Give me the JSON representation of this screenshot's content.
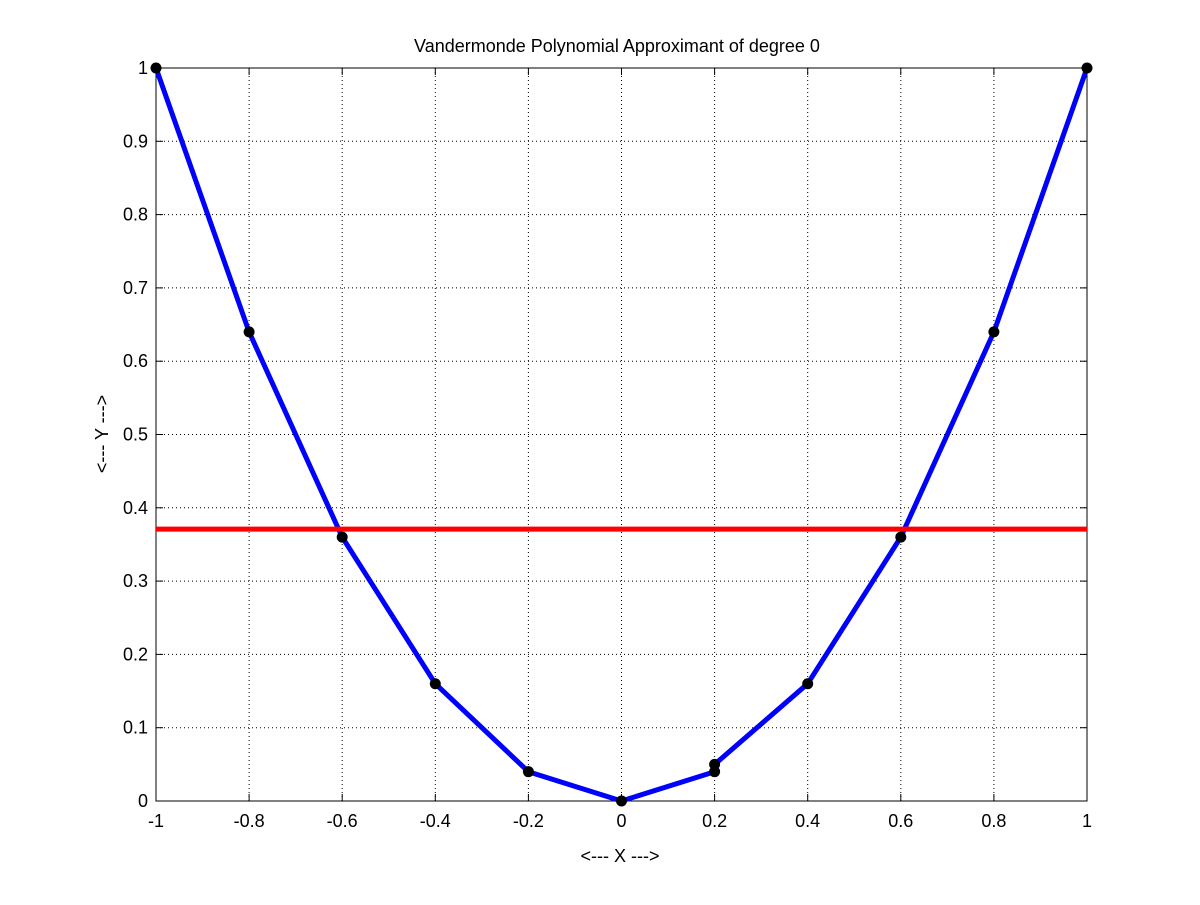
{
  "chart_data": {
    "type": "line",
    "title": "Vandermonde Polynomial Approximant of degree 0",
    "xlabel": "<--- X --->",
    "ylabel": "<--- Y --->",
    "xlim": [
      -1,
      1
    ],
    "ylim": [
      0,
      1
    ],
    "xticks": [
      -1,
      -0.8,
      -0.6,
      -0.4,
      -0.2,
      0,
      0.2,
      0.4,
      0.6,
      0.8,
      1
    ],
    "xtick_labels": [
      "-1",
      "-0.8",
      "-0.6",
      "-0.4",
      "-0.2",
      "0",
      "0.2",
      "0.4",
      "0.6",
      "0.8",
      "1"
    ],
    "yticks": [
      0,
      0.1,
      0.2,
      0.3,
      0.4,
      0.5,
      0.6,
      0.7,
      0.8,
      0.9,
      1
    ],
    "ytick_labels": [
      "0",
      "0.1",
      "0.2",
      "0.3",
      "0.4",
      "0.5",
      "0.6",
      "0.7",
      "0.8",
      "0.9",
      "1"
    ],
    "grid": true,
    "series": [
      {
        "color": "#0000ff",
        "style": "line",
        "x": [
          -1,
          -0.8,
          -0.6,
          -0.4,
          -0.2,
          0,
          0.2,
          0.2,
          0.4,
          0.6,
          0.8,
          1
        ],
        "y": [
          1,
          0.64,
          0.36,
          0.16,
          0.04,
          0,
          0.04,
          0.05,
          0.16,
          0.36,
          0.64,
          1
        ]
      },
      {
        "color": "#ff0000",
        "style": "line",
        "x": [
          -1,
          1
        ],
        "y": [
          0.371,
          0.371
        ]
      },
      {
        "color": "#000000",
        "style": "markers",
        "x": [
          -1,
          -0.8,
          -0.6,
          -0.4,
          -0.2,
          0,
          0.2,
          0.2,
          0.4,
          0.6,
          0.8,
          1
        ],
        "y": [
          1,
          0.64,
          0.36,
          0.16,
          0.04,
          0,
          0.04,
          0.05,
          0.16,
          0.36,
          0.64,
          1
        ]
      }
    ]
  }
}
